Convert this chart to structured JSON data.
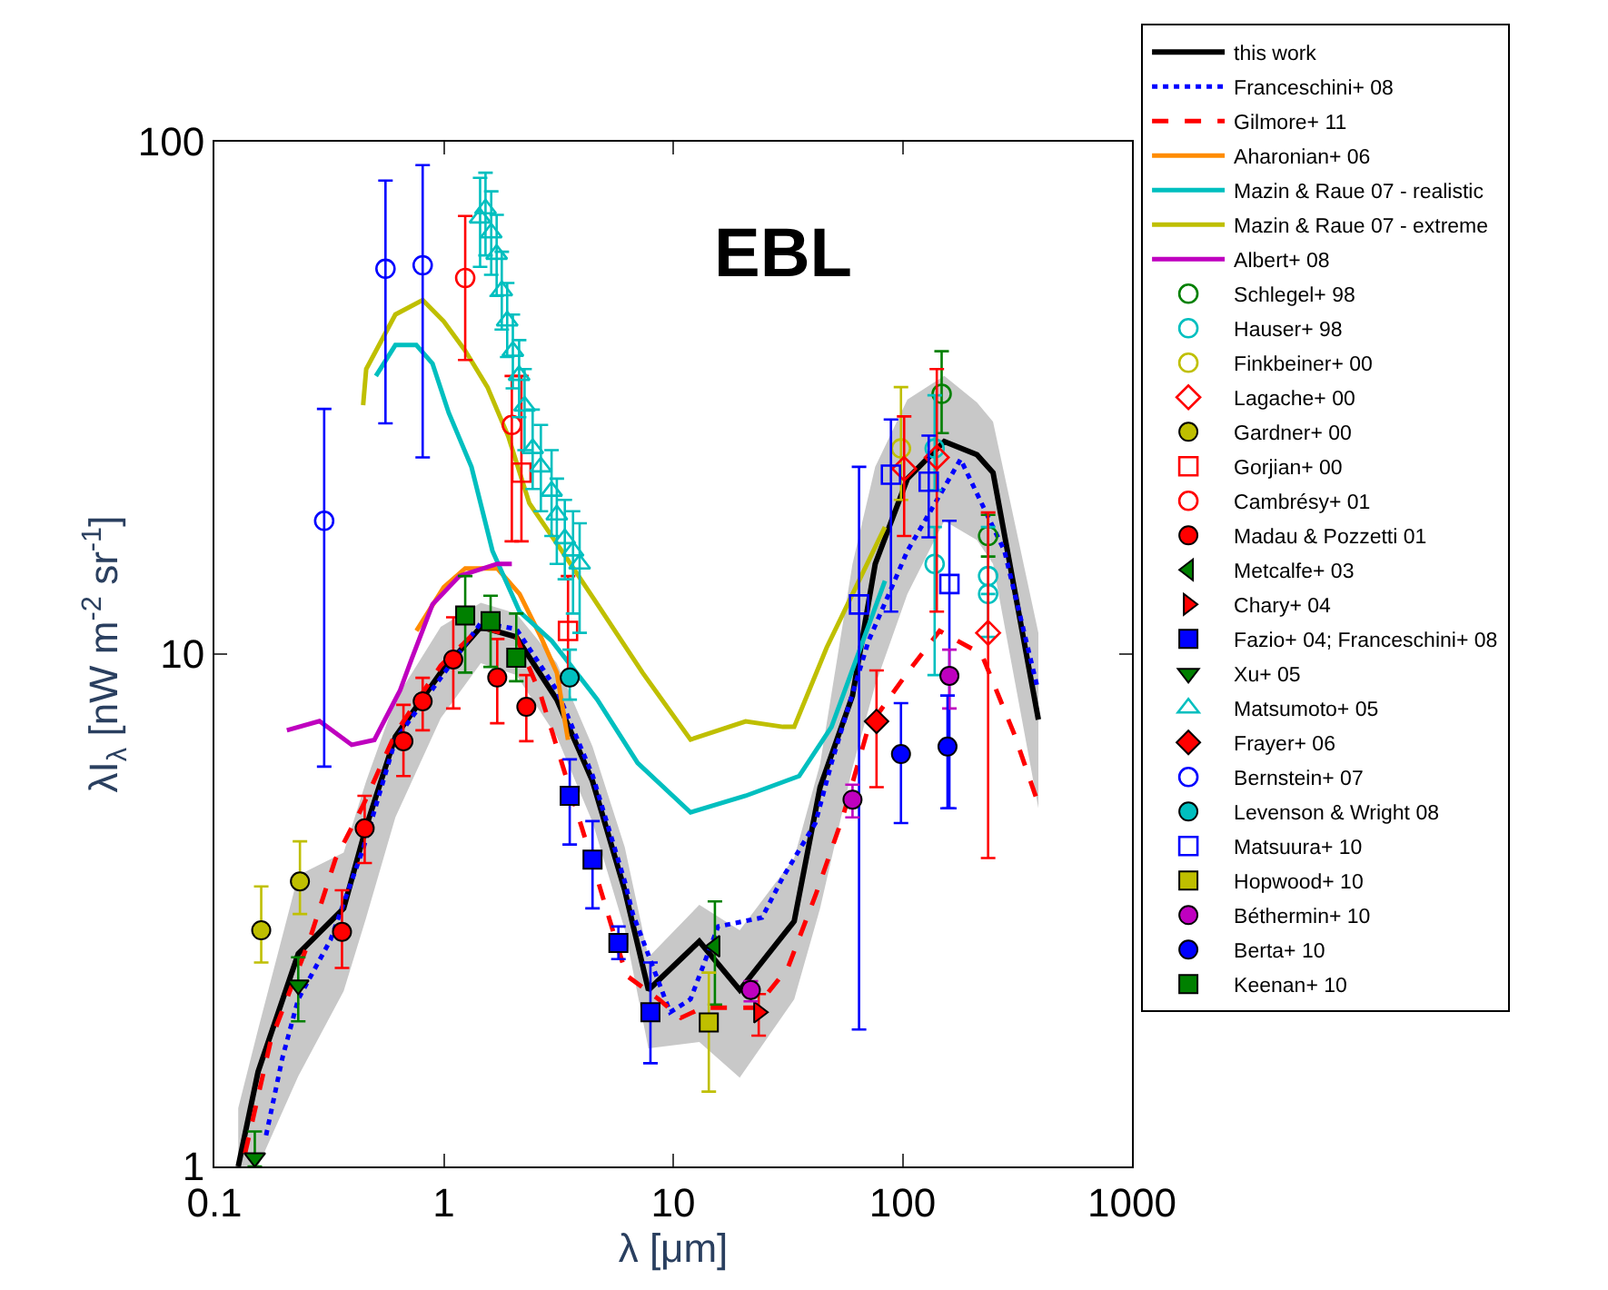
{
  "chart_data": {
    "type": "line",
    "title": "EBL",
    "xlabel": "λ [μm]",
    "ylabel": "λI$_{λ}$ [nW m$^{-2}$ sr$^{-1}$]",
    "log": "xy",
    "xlim": [
      0.1,
      1000
    ],
    "ylim": [
      1,
      100
    ],
    "xticks": [
      0.1,
      1,
      10,
      100,
      1000
    ],
    "yticks": [
      1,
      10,
      100
    ],
    "legend": "right",
    "series": [
      {
        "name": "this work",
        "color": "#000000",
        "line_style": "solid",
        "x": [
          0.127,
          0.155,
          0.232,
          0.366,
          0.459,
          0.615,
          0.97,
          1.45,
          2.07,
          3.11,
          4.45,
          6.15,
          7.8,
          13,
          19.5,
          33.7,
          43.7,
          60.5,
          76,
          105,
          152,
          211,
          248,
          391
        ],
        "values": [
          1.0,
          1.53,
          2.6,
          3.19,
          4.6,
          6.9,
          9.2,
          11.3,
          10.8,
          8.15,
          5.65,
          3.46,
          2.21,
          2.75,
          2.21,
          3.01,
          5.5,
          8.3,
          15,
          22,
          26,
          24.5,
          22.6,
          7.45
        ],
        "upper": [
          1.3,
          1.85,
          3.7,
          4.1,
          5.65,
          8.15,
          11.3,
          12.6,
          12,
          9.6,
          6.6,
          4.2,
          2.56,
          3.24,
          2.89,
          4.0,
          6.1,
          15,
          23.2,
          31.4,
          34.9,
          31,
          28.4,
          11
        ],
        "lower": [
          1.0,
          1.0,
          1.5,
          2.2,
          3.06,
          4.8,
          7.5,
          9.6,
          9.1,
          6.9,
          4.7,
          2.9,
          1.7,
          1.75,
          1.49,
          2.12,
          3.19,
          6.0,
          8.7,
          13.1,
          18.2,
          16.7,
          15,
          5
        ]
      },
      {
        "name": "Franceschini+ 08",
        "color": "#0000ff",
        "line_style": "dotted",
        "x": [
          0.168,
          0.198,
          0.232,
          0.321,
          0.446,
          0.615,
          1.45,
          2.07,
          3.11,
          4.45,
          6.15,
          6.67,
          9.7,
          11.9,
          15.7,
          24.4,
          30,
          41.7,
          49,
          71,
          105,
          179,
          278,
          385
        ],
        "values": [
          1.15,
          1.63,
          2.12,
          2.77,
          4.18,
          6.8,
          11.5,
          11.2,
          8.5,
          5.8,
          3.6,
          3.11,
          2.0,
          2.12,
          2.94,
          3.06,
          3.66,
          4.68,
          6.13,
          10.6,
          15.9,
          24,
          15.9,
          8.7
        ]
      },
      {
        "name": "Gilmore+ 11",
        "color": "#ff0000",
        "line_style": "dashed",
        "x": [
          0.136,
          0.176,
          0.26,
          0.337,
          0.446,
          0.615,
          0.97,
          1.45,
          2.07,
          2.65,
          4.1,
          6.25,
          8.65,
          10.8,
          13.4,
          22.9,
          31.6,
          41.7,
          54.8,
          71,
          105,
          145,
          221,
          306,
          385
        ],
        "values": [
          1.06,
          1.76,
          2.77,
          3.98,
          5.08,
          7.0,
          9.5,
          11.3,
          10.8,
          8.3,
          4.42,
          2.36,
          2.12,
          1.95,
          2.04,
          2.04,
          2.44,
          3.38,
          4.8,
          7.2,
          9.2,
          11.1,
          10,
          7.0,
          5.2
        ]
      },
      {
        "name": "Aharonian+ 06",
        "color": "#ff8c00",
        "line_style": "solid",
        "x": [
          0.76,
          1.0,
          1.24,
          1.71,
          2.14,
          2.65,
          3.11,
          3.48
        ],
        "values": [
          11.1,
          13.5,
          14.7,
          14.7,
          13.1,
          10.8,
          9.2,
          6.8
        ]
      },
      {
        "name": "Mazin & Raue 07 - realistic",
        "color": "#00bfbf",
        "line_style": "solid",
        "x": [
          0.506,
          0.615,
          0.759,
          0.893,
          1.05,
          1.32,
          1.63,
          2.14,
          2.96,
          4.67,
          7.0,
          11.9,
          20.7,
          35.4,
          49,
          83.8
        ],
        "values": [
          34.9,
          40.1,
          40.1,
          36.9,
          29.6,
          23.2,
          15.9,
          12.1,
          10.6,
          8.15,
          6.13,
          4.91,
          5.29,
          5.78,
          7.21,
          13.9
        ]
      },
      {
        "name": "Mazin & Raue 07 - extreme",
        "color": "#bfbf00",
        "line_style": "solid",
        "x": [
          0.445,
          0.459,
          0.615,
          0.809,
          1.0,
          1.24,
          1.55,
          1.91,
          2.36,
          3.27,
          4.52,
          7.35,
          11.9,
          20.7,
          30.1,
          33.7,
          46.7,
          83.8
        ],
        "values": [
          30.6,
          36,
          46,
          49.1,
          44.6,
          39.1,
          33.2,
          26.6,
          19.7,
          15.9,
          12.8,
          9.2,
          6.81,
          7.39,
          7.21,
          7.21,
          10.3,
          17.7
        ]
      },
      {
        "name": "Albert+ 08",
        "color": "#bf00bf",
        "line_style": "solid",
        "x": [
          0.207,
          0.287,
          0.397,
          0.498,
          0.645,
          0.723,
          0.893,
          1.17,
          1.71,
          1.98
        ],
        "values": [
          7.1,
          7.4,
          6.65,
          6.8,
          8.5,
          9.76,
          12.5,
          14.2,
          15.0,
          15.0
        ]
      },
      {
        "name": "Schlegel+ 98",
        "type": "scatter",
        "marker": "circle-open",
        "color": "#008000",
        "x": [
          148,
          236
        ],
        "values": [
          32.2,
          17.0
        ],
        "errors": [
          [
            27,
            39
          ],
          [
            15.5,
            18.7
          ]
        ]
      },
      {
        "name": "Hauser+ 98",
        "type": "scatter",
        "marker": "circle-open",
        "color": "#00bfbf",
        "x": [
          138,
          138,
          236,
          236
        ],
        "values": [
          25.2,
          15.0,
          14.2,
          13.1
        ],
        "errors": [
          [
            20.9,
            32
          ],
          [
            9.1,
            17.7
          ],
          [
            10.8,
            17.7
          ],
          null
        ]
      },
      {
        "name": "Finkbeiner+ 00",
        "type": "scatter",
        "marker": "circle-open",
        "color": "#bfbf00",
        "x": [
          98.4
        ],
        "values": [
          25.2
        ],
        "errors": [
          [
            20,
            33.2
          ]
        ]
      },
      {
        "name": "Lagache+ 00",
        "type": "scatter",
        "marker": "diamond-open",
        "color": "#ff0000",
        "x": [
          101.6,
          141,
          236
        ],
        "values": [
          23,
          24.2,
          11.0
        ],
        "errors": [
          [
            17.0,
            29.1
          ],
          [
            12.1,
            36
          ],
          [
            4.0,
            18.9
          ]
        ]
      },
      {
        "name": "Gardner+ 00",
        "type": "scatter",
        "marker": "circle",
        "color": "#bfbf00",
        "x": [
          0.16,
          0.236
        ],
        "values": [
          2.89,
          3.6
        ],
        "errors": [
          [
            2.5,
            3.52
          ],
          [
            3.11,
            4.31
          ]
        ]
      },
      {
        "name": "Gorjian+ 00",
        "type": "scatter",
        "marker": "square-open",
        "color": "#ff0000",
        "x": [
          2.18,
          3.48
        ],
        "values": [
          22.6,
          11.1
        ],
        "errors": [
          [
            16.6,
            34.9
          ],
          [
            8.8,
            14.2
          ]
        ]
      },
      {
        "name": "Cambrésy+ 01",
        "type": "scatter",
        "marker": "circle-open",
        "color": "#ff0000",
        "x": [
          1.24,
          1.98
        ],
        "values": [
          54.2,
          28
        ],
        "errors": [
          [
            37.5,
            71.6
          ],
          [
            16.6,
            34.9
          ]
        ]
      },
      {
        "name": "Madau & Pozzetti 01",
        "type": "scatter",
        "marker": "circle",
        "color": "#ff0000",
        "x": [
          0.36,
          0.452,
          0.667,
          0.809,
          1.1,
          1.71,
          2.29
        ],
        "values": [
          2.87,
          4.57,
          6.76,
          8.09,
          9.76,
          9.0,
          7.89
        ],
        "errors": [
          [
            2.44,
            3.46
          ],
          [
            3.91,
            5.29
          ],
          [
            5.78,
            7.96
          ],
          [
            7.1,
            8.99
          ],
          [
            7.83,
            11.8
          ],
          [
            7.33,
            10.7
          ],
          [
            6.76,
            9.1
          ]
        ]
      },
      {
        "name": "Metcalfe+ 03",
        "type": "scatter",
        "marker": "triangle-left",
        "color": "#008000",
        "x": [
          15.2
        ],
        "values": [
          2.69
        ],
        "errors": [
          [
            2.07,
            3.29
          ]
        ]
      },
      {
        "name": "Chary+ 04",
        "type": "scatter",
        "marker": "triangle-right",
        "color": "#ff0000",
        "x": [
          23.6
        ],
        "values": [
          2.0
        ],
        "errors": [
          [
            1.8,
            2.17
          ]
        ]
      },
      {
        "name": "Fazio+ 04; Franceschini+ 08",
        "type": "scatter",
        "marker": "square",
        "color": "#0000ff",
        "x": [
          3.54,
          4.45,
          5.77,
          7.96
        ],
        "values": [
          5.29,
          3.97,
          2.73,
          2.0
        ],
        "errors": [
          [
            4.25,
            6.23
          ],
          [
            3.19,
            4.72
          ],
          [
            2.54,
            2.94
          ],
          [
            1.59,
            2.5
          ]
        ]
      },
      {
        "name": "Xu+ 05",
        "type": "scatter",
        "marker": "triangle-down",
        "color": "#008000",
        "x": [
          0.15,
          0.232
        ],
        "values": [
          1.04,
          2.26
        ],
        "errors": [
          [
            1.0,
            1.17
          ],
          [
            1.92,
            2.56
          ]
        ]
      },
      {
        "name": "Matsumoto+ 05",
        "type": "scatter",
        "marker": "triangle-up-open",
        "color": "#00bfbf",
        "x": [
          1.44,
          1.52,
          1.61,
          1.7,
          1.79,
          1.89,
          2.0,
          2.13,
          2.25,
          2.44,
          2.65,
          2.95,
          3.11,
          3.37,
          3.66,
          3.91
        ],
        "values": [
          71,
          74,
          66.4,
          60.3,
          51.2,
          44.7,
          39,
          35,
          30.5,
          25.2,
          23.2,
          20.8,
          18.7,
          16.8,
          15.9,
          15.0
        ],
        "errors": [
          [
            57,
            85
          ],
          [
            60,
            87
          ],
          [
            55,
            80
          ],
          [
            50,
            72
          ],
          [
            43,
            61
          ],
          [
            38,
            53
          ],
          [
            33,
            46
          ],
          [
            29,
            41
          ],
          [
            25,
            36
          ],
          [
            21,
            30
          ],
          [
            19,
            28
          ],
          [
            17,
            25
          ],
          [
            15,
            22
          ],
          [
            14,
            20
          ],
          [
            12,
            19
          ],
          [
            11,
            18
          ]
        ]
      },
      {
        "name": "Frayer+ 06",
        "type": "scatter",
        "marker": "diamond",
        "color": "#ff0000",
        "x": [
          77
        ],
        "values": [
          7.39
        ],
        "errors": [
          [
            5.5,
            9.29
          ]
        ]
      },
      {
        "name": "Bernstein+ 07",
        "type": "scatter",
        "marker": "circle-open",
        "color": "#0000ff",
        "x": [
          0.301,
          0.557,
          0.809
        ],
        "values": [
          18.2,
          56.5,
          57.4
        ],
        "errors": [
          [
            6.03,
            30.1
          ],
          [
            28.2,
            84
          ],
          [
            24.2,
            90
          ]
        ]
      },
      {
        "name": "Levenson & Wright 08",
        "type": "scatter",
        "marker": "circle",
        "color": "#00bfbf",
        "x": [
          3.54
        ],
        "values": [
          9.0
        ],
        "errors": [
          [
            8.15,
            10.2
          ]
        ]
      },
      {
        "name": "Matsuura+ 10",
        "type": "scatter",
        "marker": "square-open",
        "color": "#0000ff",
        "x": [
          64.6,
          89,
          130,
          160
        ],
        "values": [
          12.5,
          22.4,
          21.7,
          13.7
        ],
        "errors": [
          [
            1.85,
            23.2
          ],
          [
            12.1,
            28.7
          ],
          [
            16.9,
            26.7
          ],
          [
            5.0,
            18.2
          ]
        ]
      },
      {
        "name": "Hopwood+ 10",
        "type": "scatter",
        "marker": "square",
        "color": "#bfbf00",
        "x": [
          14.3
        ],
        "values": [
          1.91
        ],
        "errors": [
          [
            1.4,
            2.39
          ]
        ]
      },
      {
        "name": "Béthermin+ 10",
        "type": "scatter",
        "marker": "circle",
        "color": "#bf00bf",
        "x": [
          21.8,
          60.5,
          160
        ],
        "values": [
          2.21,
          5.2,
          9.07
        ],
        "errors": [
          [
            2.1,
            2.3
          ],
          [
            4.8,
            5.56
          ],
          [
            7.83,
            10.2
          ]
        ]
      },
      {
        "name": "Berta+ 10",
        "type": "scatter",
        "marker": "circle",
        "color": "#0000ff",
        "x": [
          98.4,
          157
        ],
        "values": [
          6.38,
          6.6
        ],
        "errors": [
          [
            4.68,
            8.02
          ],
          [
            5.0,
            8.3
          ]
        ]
      },
      {
        "name": "Keenan+ 10",
        "type": "scatter",
        "marker": "square",
        "color": "#008000",
        "x": [
          1.24,
          1.6,
          2.07
        ],
        "values": [
          11.9,
          11.6,
          9.84
        ],
        "errors": [
          [
            9.2,
            14.2
          ],
          [
            9.44,
            13
          ],
          [
            8.85,
            12
          ]
        ]
      }
    ]
  }
}
